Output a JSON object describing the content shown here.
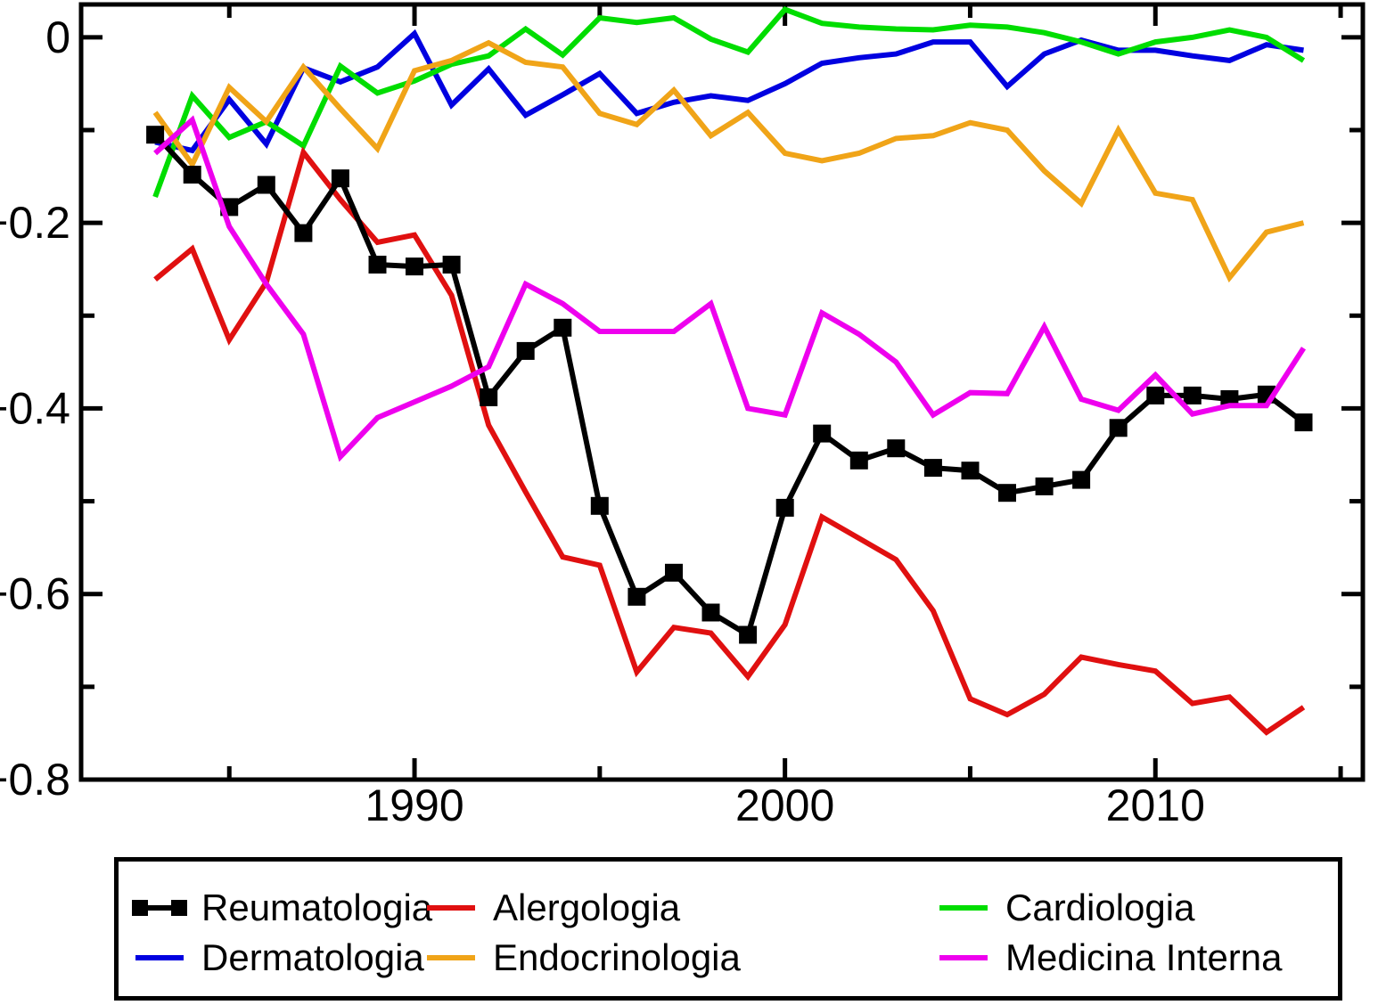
{
  "chart_data": {
    "type": "line",
    "title": "",
    "xlabel": "",
    "ylabel": "",
    "grid": false,
    "legend_position": "bottom",
    "xlim": [
      1981,
      2015.6
    ],
    "ylim": [
      -0.8,
      0.0354
    ],
    "x": [
      1983,
      1984,
      1985,
      1986,
      1987,
      1988,
      1989,
      1990,
      1991,
      1992,
      1993,
      1994,
      1995,
      1996,
      1997,
      1998,
      1999,
      2000,
      2001,
      2002,
      2003,
      2004,
      2005,
      2006,
      2007,
      2008,
      2009,
      2010,
      2011,
      2012,
      2013,
      2014
    ],
    "x_axis": {
      "major_ticks": [
        1990,
        2000,
        2010
      ],
      "minor_ticks": [
        1985,
        1995,
        2005,
        2015
      ],
      "tick_labels": [
        "1990",
        "2000",
        "2010"
      ]
    },
    "y_axis": {
      "major_ticks": [
        0,
        -0.2,
        -0.4,
        -0.6,
        -0.8
      ],
      "minor_ticks": [
        -0.1,
        -0.3,
        -0.5,
        -0.7
      ],
      "tick_labels": [
        "0",
        "−0.2",
        "−0.4",
        "−0.6",
        "−0.8"
      ]
    },
    "series": [
      {
        "name": "Reumatologia",
        "color": "#000000",
        "marker": "square",
        "values": [
          -0.105,
          -0.148,
          -0.183,
          -0.159,
          -0.211,
          -0.152,
          -0.245,
          -0.247,
          -0.245,
          -0.388,
          -0.338,
          -0.313,
          -0.505,
          -0.603,
          -0.577,
          -0.62,
          -0.644,
          -0.507,
          -0.427,
          -0.456,
          -0.443,
          -0.464,
          -0.467,
          -0.491,
          -0.484,
          -0.477,
          -0.421,
          -0.386,
          -0.386,
          -0.39,
          -0.385,
          -0.415
        ]
      },
      {
        "name": "Dermatologia",
        "color": "#0000e0",
        "marker": "none",
        "values": [
          -0.113,
          -0.122,
          -0.067,
          -0.115,
          -0.033,
          -0.048,
          -0.032,
          0.004,
          -0.073,
          -0.034,
          -0.084,
          -0.062,
          -0.039,
          -0.082,
          -0.07,
          -0.063,
          -0.068,
          -0.05,
          -0.028,
          -0.022,
          -0.018,
          -0.005,
          -0.005,
          -0.053,
          -0.018,
          -0.003,
          -0.014,
          -0.014,
          -0.02,
          -0.025,
          -0.008,
          -0.014
        ]
      },
      {
        "name": "Alergologia",
        "color": "#e01010",
        "marker": "none",
        "values": [
          -0.261,
          -0.228,
          -0.326,
          -0.264,
          -0.124,
          -0.175,
          -0.221,
          -0.213,
          -0.278,
          -0.418,
          -0.49,
          -0.56,
          -0.569,
          -0.684,
          -0.636,
          -0.642,
          -0.689,
          -0.633,
          -0.517,
          -0.54,
          -0.563,
          -0.618,
          -0.713,
          -0.73,
          -0.708,
          -0.668,
          -0.676,
          -0.683,
          -0.718,
          -0.711,
          -0.749,
          -0.722
        ]
      },
      {
        "name": "Endocrinologia",
        "color": "#f0a418",
        "marker": "none",
        "values": [
          -0.081,
          -0.137,
          -0.054,
          -0.091,
          -0.032,
          -0.077,
          -0.12,
          -0.036,
          -0.025,
          -0.006,
          -0.027,
          -0.032,
          -0.082,
          -0.094,
          -0.057,
          -0.106,
          -0.081,
          -0.125,
          -0.133,
          -0.125,
          -0.109,
          -0.106,
          -0.092,
          -0.1,
          -0.144,
          -0.179,
          -0.1,
          -0.168,
          -0.175,
          -0.259,
          -0.21,
          -0.2
        ]
      },
      {
        "name": "Cardiologia",
        "color": "#00dd00",
        "marker": "none",
        "values": [
          -0.172,
          -0.063,
          -0.108,
          -0.091,
          -0.117,
          -0.031,
          -0.06,
          -0.047,
          -0.029,
          -0.02,
          0.009,
          -0.019,
          0.021,
          0.016,
          0.021,
          -0.002,
          -0.016,
          0.03,
          0.015,
          0.011,
          0.009,
          0.008,
          0.013,
          0.011,
          0.005,
          -0.005,
          -0.018,
          -0.005,
          0.0,
          0.008,
          0.0,
          -0.025
        ]
      },
      {
        "name": "Medicina Interna",
        "color": "#ee00ee",
        "marker": "none",
        "values": [
          -0.125,
          -0.089,
          -0.204,
          -0.266,
          -0.32,
          -0.452,
          -0.41,
          -0.393,
          -0.376,
          -0.355,
          -0.266,
          -0.287,
          -0.317,
          -0.317,
          -0.317,
          -0.287,
          -0.4,
          -0.407,
          -0.297,
          -0.32,
          -0.35,
          -0.407,
          -0.383,
          -0.384,
          -0.312,
          -0.39,
          -0.402,
          -0.364,
          -0.406,
          -0.397,
          -0.397,
          -0.335
        ]
      }
    ]
  }
}
